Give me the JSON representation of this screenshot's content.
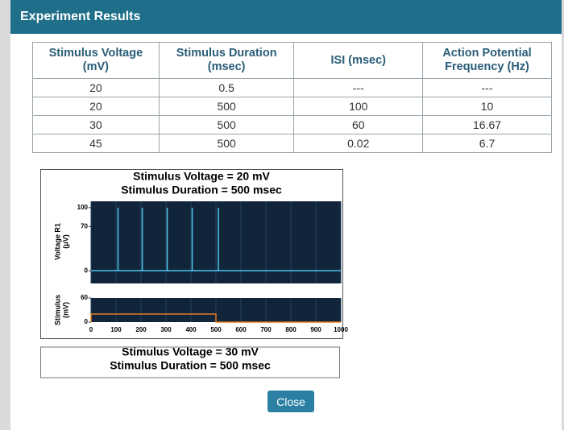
{
  "dialog": {
    "title": "Experiment Results",
    "close_button": "Close"
  },
  "table": {
    "headers": [
      [
        "Stimulus Voltage",
        "(mV)"
      ],
      [
        "Stimulus Duration",
        "(msec)"
      ],
      [
        "ISI (msec)"
      ],
      [
        "Action Potential",
        "Frequency (Hz)"
      ]
    ],
    "rows": [
      [
        "20",
        "0.5",
        "---",
        "---"
      ],
      [
        "20",
        "500",
        "100",
        "10"
      ],
      [
        "30",
        "500",
        "60",
        "16.67"
      ],
      [
        "45",
        "500",
        "0.02",
        "6.7"
      ]
    ]
  },
  "chart_data": {
    "type": "line",
    "title": "Stimulus Voltage = 20 mV",
    "subtitle": "Stimulus Duration = 500 msec",
    "y_label": [
      "Voltage R1",
      "(μV)"
    ],
    "y2_label": [
      "Stimulus",
      "(mV)"
    ],
    "xlim": [
      0,
      1000
    ],
    "xticks": [
      0,
      100,
      200,
      300,
      400,
      500,
      600,
      700,
      800,
      900,
      1000
    ],
    "ylim": [
      -20,
      110
    ],
    "yticks": [
      0,
      70,
      100
    ],
    "y2lim": [
      0,
      60
    ],
    "y2ticks": [
      0,
      60
    ],
    "grid": true,
    "series": [
      {
        "name": "Voltage R1",
        "color": "#4cc6ec",
        "x": [
          0,
          108,
          108,
          108,
          205,
          205,
          205,
          305,
          305,
          305,
          405,
          405,
          405,
          510,
          510,
          510,
          1000
        ],
        "values": [
          0,
          0,
          100,
          0,
          0,
          100,
          0,
          0,
          100,
          0,
          0,
          100,
          0,
          0,
          100,
          0,
          0
        ]
      },
      {
        "name": "Stimulus",
        "color": "#e07b1f",
        "axis": "y2",
        "x": [
          0,
          0,
          500,
          500,
          1000
        ],
        "values": [
          0,
          20,
          20,
          0,
          0
        ]
      }
    ]
  },
  "next_chart": {
    "title": "Stimulus Voltage = 30 mV",
    "subtitle": "Stimulus Duration = 500 msec"
  }
}
